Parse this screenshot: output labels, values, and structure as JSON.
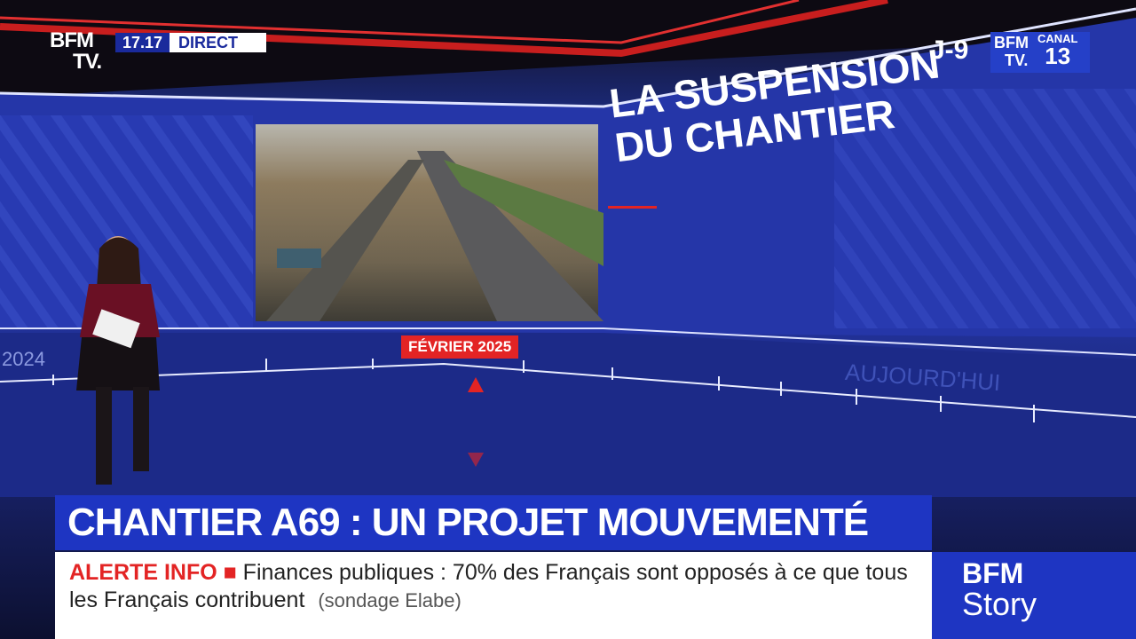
{
  "header": {
    "logo": [
      "BFM",
      "TV."
    ],
    "time": "17.17",
    "live": "DIRECT",
    "countdown": "J-9",
    "channel_logo": [
      "BFM",
      "TV."
    ],
    "channel": [
      "CANAL",
      "13"
    ]
  },
  "screen": {
    "title": [
      "LA SUSPENSION",
      "DU CHANTIER"
    ],
    "timeline": {
      "start": "2024",
      "marker": "FÉVRIER 2025",
      "end": "AUJOURD'HUI"
    }
  },
  "banner": {
    "headline": "CHANTIER A69 : UN PROJET MOUVEMENTÉ"
  },
  "ticker": {
    "label": "ALERTE INFO",
    "text": "Finances publiques : 70% des Français sont opposés à ce que tous les Français contribuent",
    "source": "(sondage Elabe)"
  },
  "program": {
    "name": [
      "BFM",
      "Story"
    ]
  }
}
